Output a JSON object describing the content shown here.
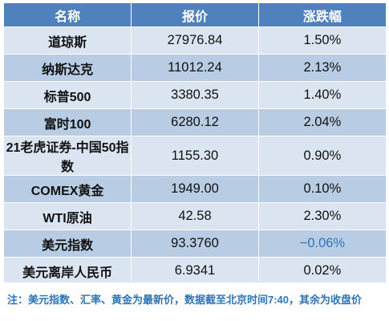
{
  "table": {
    "headers": [
      "名称",
      "报价",
      "涨跌幅"
    ],
    "rows": [
      {
        "name": "道琼斯",
        "price": "27976.84",
        "change": "1.50%"
      },
      {
        "name": "纳斯达克",
        "price": "11012.24",
        "change": "2.13%"
      },
      {
        "name": "标普500",
        "price": "3380.35",
        "change": "1.40%"
      },
      {
        "name": "富时100",
        "price": "6280.12",
        "change": "2.04%"
      },
      {
        "name": "21老虎证券-中国50指数",
        "price": "1155.30",
        "change": "0.90%"
      },
      {
        "name": "COMEX黄金",
        "price": "1949.00",
        "change": "0.10%"
      },
      {
        "name": "WTI原油",
        "price": "42.58",
        "change": "2.30%"
      },
      {
        "name": "美元指数",
        "price": "93.3760",
        "change": "−0.06%"
      },
      {
        "name": "美元离岸人民币",
        "price": "6.9341",
        "change": "0.02%"
      }
    ]
  },
  "note": "注：美元指数、汇率、黄金为最新价，数据截至北京时间7:40，其余为收盘价",
  "colors": {
    "header_bg": "#4f81bd",
    "row_light": "#dbe5f1",
    "row_dark": "#b8cce4",
    "negative": "#2e75b6",
    "note_text": "#2e75b6"
  }
}
